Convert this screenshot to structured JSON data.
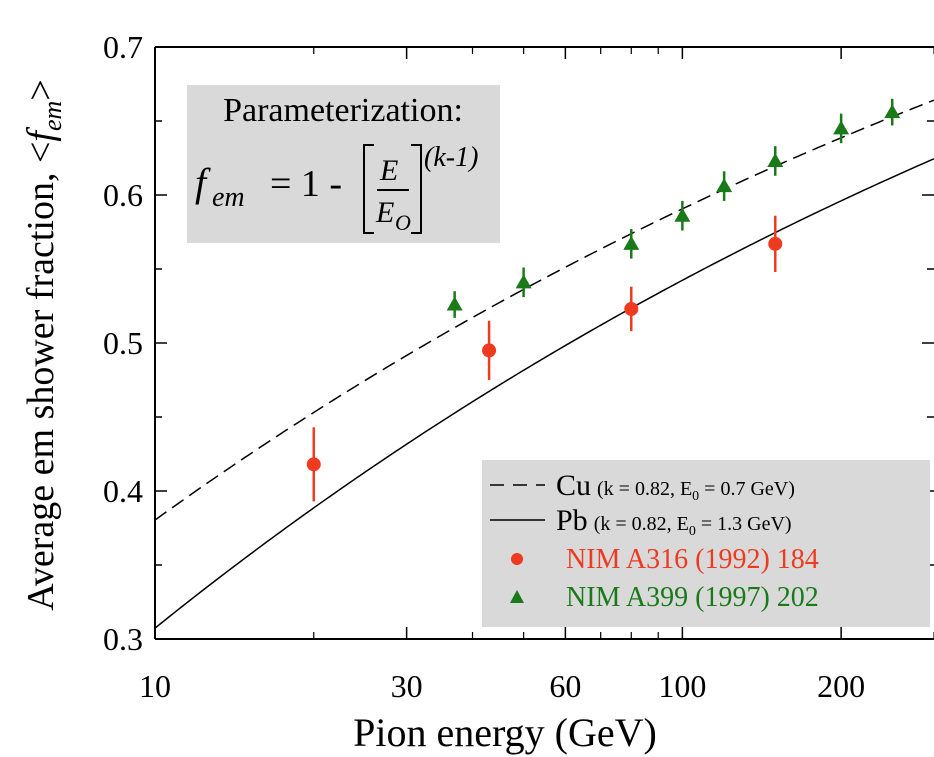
{
  "chart_data": {
    "type": "scatter",
    "x_scale": "log",
    "xlabel": "Pion energy (GeV)",
    "ylabel": "Average em shower fraction, <",
    "ylabel_symbol": "f",
    "ylabel_sub": "em",
    "ylabel_close": ">",
    "xlim": [
      10,
      300
    ],
    "ylim": [
      0.3,
      0.7
    ],
    "x_ticks": [
      10,
      30,
      60,
      100,
      200
    ],
    "x_tick_labels": [
      "10",
      "30",
      "60",
      "100",
      "200"
    ],
    "y_ticks": [
      0.3,
      0.4,
      0.5,
      0.6,
      0.7
    ],
    "y_tick_labels": [
      "0.3",
      "0.4",
      "0.5",
      "0.6",
      "0.7"
    ],
    "grid": false,
    "legend_position": "bottom-right",
    "annotation": {
      "title": "Parameterization:",
      "formula_lhs": "f",
      "formula_lhs_sub": "em",
      "formula_eq": "= 1 -",
      "formula_num": "E",
      "formula_den": "E",
      "formula_den_sub": "O",
      "formula_exp": "(k-1)"
    },
    "curves": [
      {
        "name": "Cu",
        "params": "(k = 0.82, E",
        "params_sub": "0",
        "params_tail": " = 0.7 GeV)",
        "k": 0.82,
        "E0": 0.7,
        "style": "dashed",
        "color": "#000000"
      },
      {
        "name": "Pb",
        "params": "(k = 0.82, E",
        "params_sub": "0",
        "params_tail": " = 1.3 GeV)",
        "k": 0.82,
        "E0": 1.3,
        "style": "solid",
        "color": "#000000"
      }
    ],
    "series": [
      {
        "name": "NIM A316 (1992) 184",
        "marker": "circle",
        "color": "#ee3a1f",
        "points": [
          {
            "x": 20,
            "y": 0.418,
            "yerr": 0.025
          },
          {
            "x": 43,
            "y": 0.495,
            "yerr": 0.02
          },
          {
            "x": 80,
            "y": 0.523,
            "yerr": 0.015
          },
          {
            "x": 150,
            "y": 0.567,
            "yerr": 0.019
          }
        ]
      },
      {
        "name": "NIM A399 (1997) 202",
        "marker": "triangle",
        "color": "#1a7a1a",
        "points": [
          {
            "x": 37,
            "y": 0.526,
            "yerr": 0.009
          },
          {
            "x": 50,
            "y": 0.541,
            "yerr": 0.01
          },
          {
            "x": 80,
            "y": 0.567,
            "yerr": 0.01
          },
          {
            "x": 100,
            "y": 0.586,
            "yerr": 0.01
          },
          {
            "x": 120,
            "y": 0.606,
            "yerr": 0.01
          },
          {
            "x": 150,
            "y": 0.623,
            "yerr": 0.01
          },
          {
            "x": 200,
            "y": 0.645,
            "yerr": 0.01
          },
          {
            "x": 250,
            "y": 0.656,
            "yerr": 0.009
          }
        ]
      }
    ]
  }
}
